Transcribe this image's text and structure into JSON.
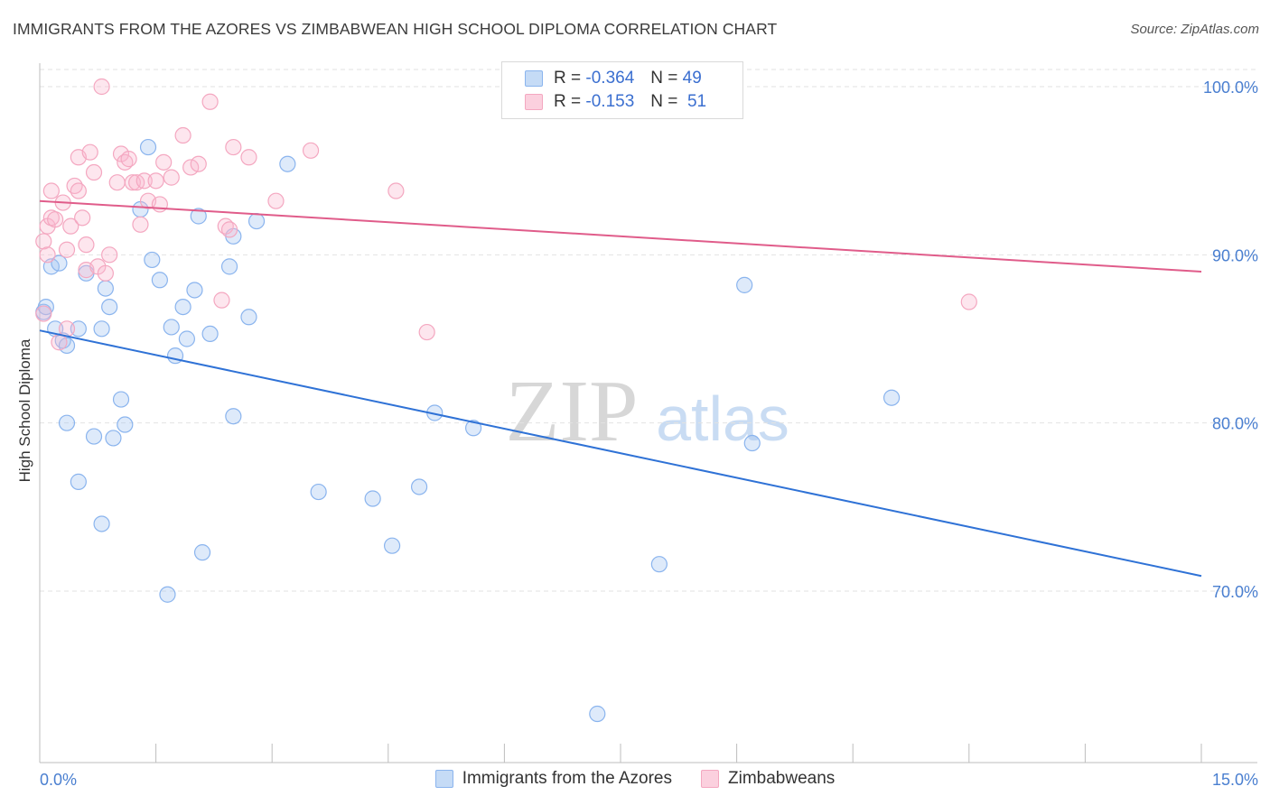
{
  "title": "IMMIGRANTS FROM THE AZORES VS ZIMBABWEAN HIGH SCHOOL DIPLOMA CORRELATION CHART",
  "source": "Source: ZipAtlas.com",
  "watermark": {
    "zip": "ZIP",
    "atlas": "atlas"
  },
  "legend_top": {
    "rows": [
      {
        "r_label": "R =",
        "r_value": "-0.364",
        "n_label": "N =",
        "n_value": "49"
      },
      {
        "r_label": "R =",
        "r_value": "-0.153",
        "n_label": "N =",
        "n_value": "51"
      }
    ]
  },
  "chart_data": {
    "type": "scatter",
    "title": "IMMIGRANTS FROM THE AZORES VS ZIMBABWEAN HIGH SCHOOL DIPLOMA CORRELATION CHART",
    "xlabel": "",
    "ylabel": "High School Diploma",
    "xlim": [
      0,
      15
    ],
    "ylim": [
      62,
      103
    ],
    "x_ticks": [
      0,
      15
    ],
    "x_tick_labels": [
      "0.0%",
      "15.0%"
    ],
    "y_ticks": [
      70,
      80,
      90,
      100
    ],
    "y_tick_labels": [
      "70.0%",
      "80.0%",
      "90.0%",
      "100.0%"
    ],
    "grid": true,
    "legend_position": "bottom",
    "series": [
      {
        "name": "Immigrants from the Azores",
        "color": "#8ab4ee",
        "line_color": "#2f72d6",
        "R": -0.364,
        "N": 49,
        "trend": [
          [
            0,
            85.5
          ],
          [
            15,
            70.9
          ]
        ],
        "points": [
          [
            0.05,
            86.6
          ],
          [
            0.15,
            89.3
          ],
          [
            0.2,
            85.6
          ],
          [
            0.25,
            89.5
          ],
          [
            0.3,
            84.9
          ],
          [
            0.35,
            84.6
          ],
          [
            0.35,
            80.0
          ],
          [
            0.5,
            85.6
          ],
          [
            0.5,
            76.5
          ],
          [
            0.6,
            88.9
          ],
          [
            0.7,
            79.2
          ],
          [
            0.8,
            85.6
          ],
          [
            0.8,
            74.0
          ],
          [
            0.85,
            88.0
          ],
          [
            0.9,
            86.9
          ],
          [
            0.95,
            79.1
          ],
          [
            1.05,
            81.4
          ],
          [
            1.1,
            79.9
          ],
          [
            1.3,
            92.7
          ],
          [
            1.4,
            96.4
          ],
          [
            1.45,
            89.7
          ],
          [
            1.55,
            88.5
          ],
          [
            1.65,
            69.8
          ],
          [
            1.7,
            85.7
          ],
          [
            1.75,
            84.0
          ],
          [
            1.85,
            86.9
          ],
          [
            1.9,
            85.0
          ],
          [
            2.0,
            87.9
          ],
          [
            2.05,
            92.3
          ],
          [
            2.1,
            72.3
          ],
          [
            2.2,
            85.3
          ],
          [
            2.45,
            89.3
          ],
          [
            2.5,
            91.1
          ],
          [
            2.5,
            80.4
          ],
          [
            2.7,
            86.3
          ],
          [
            2.8,
            92.0
          ],
          [
            3.2,
            95.4
          ],
          [
            3.6,
            75.9
          ],
          [
            4.3,
            75.5
          ],
          [
            4.55,
            72.7
          ],
          [
            4.9,
            76.2
          ],
          [
            5.1,
            80.6
          ],
          [
            5.6,
            79.7
          ],
          [
            7.2,
            62.7
          ],
          [
            8.0,
            71.6
          ],
          [
            9.1,
            88.2
          ],
          [
            9.2,
            78.8
          ],
          [
            11.0,
            81.5
          ],
          [
            0.08,
            86.9
          ]
        ]
      },
      {
        "name": "Zimbabweans",
        "color": "#f4a7c0",
        "line_color": "#e05c8a",
        "R": -0.153,
        "N": 51,
        "trend": [
          [
            0,
            93.2
          ],
          [
            15,
            89.0
          ]
        ],
        "points": [
          [
            0.05,
            90.8
          ],
          [
            0.05,
            86.5
          ],
          [
            0.1,
            90.0
          ],
          [
            0.1,
            91.7
          ],
          [
            0.15,
            92.2
          ],
          [
            0.15,
            93.8
          ],
          [
            0.2,
            92.1
          ],
          [
            0.25,
            84.8
          ],
          [
            0.3,
            93.1
          ],
          [
            0.35,
            90.3
          ],
          [
            0.35,
            85.6
          ],
          [
            0.4,
            91.7
          ],
          [
            0.45,
            94.1
          ],
          [
            0.5,
            95.8
          ],
          [
            0.5,
            93.8
          ],
          [
            0.55,
            92.2
          ],
          [
            0.6,
            89.1
          ],
          [
            0.6,
            90.6
          ],
          [
            0.65,
            96.1
          ],
          [
            0.7,
            94.9
          ],
          [
            0.75,
            89.3
          ],
          [
            0.8,
            100.0
          ],
          [
            0.85,
            88.9
          ],
          [
            0.9,
            90.0
          ],
          [
            1.0,
            94.3
          ],
          [
            1.05,
            96.0
          ],
          [
            1.1,
            95.5
          ],
          [
            1.15,
            95.7
          ],
          [
            1.2,
            94.3
          ],
          [
            1.25,
            94.3
          ],
          [
            1.3,
            91.8
          ],
          [
            1.35,
            94.4
          ],
          [
            1.4,
            93.2
          ],
          [
            1.5,
            94.4
          ],
          [
            1.55,
            93.0
          ],
          [
            1.6,
            95.5
          ],
          [
            1.7,
            94.6
          ],
          [
            1.85,
            97.1
          ],
          [
            1.95,
            95.2
          ],
          [
            2.05,
            95.4
          ],
          [
            2.2,
            99.1
          ],
          [
            2.35,
            87.3
          ],
          [
            2.4,
            91.7
          ],
          [
            2.45,
            91.5
          ],
          [
            2.5,
            96.4
          ],
          [
            2.7,
            95.8
          ],
          [
            3.05,
            93.2
          ],
          [
            3.5,
            96.2
          ],
          [
            4.6,
            93.8
          ],
          [
            5.0,
            85.4
          ],
          [
            12.0,
            87.2
          ]
        ]
      }
    ]
  }
}
